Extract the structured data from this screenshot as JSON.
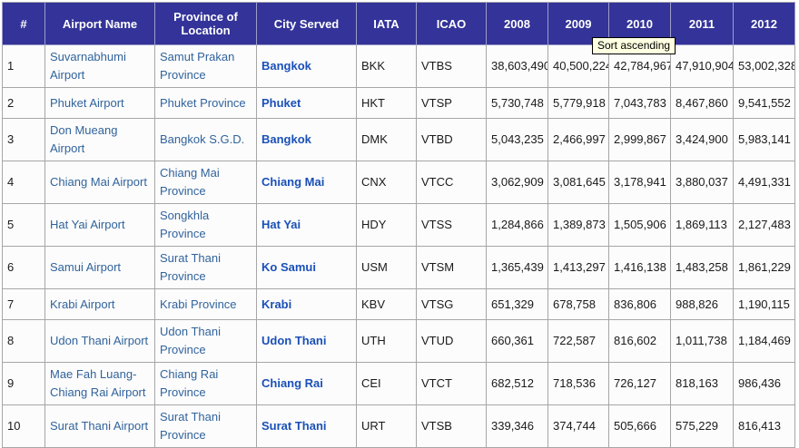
{
  "tooltip": {
    "text": "Sort ascending"
  },
  "colors": {
    "header_bg": "#333399",
    "header_text": "#ffffff",
    "tooltip_bg": "#ffffe1",
    "link_color": "#31639c",
    "city_link_color": "#1a50b8",
    "border_color": "#a6a6a6",
    "cell_bg": "#fcfcfc"
  },
  "table": {
    "columns": [
      "#",
      "Airport Name",
      "Province of Location",
      "City Served",
      "IATA",
      "ICAO",
      "2008",
      "2009",
      "2010",
      "2011",
      "2012"
    ],
    "rows": [
      {
        "rank": "1",
        "airport": "Suvarnabhumi Airport",
        "province": "Samut Prakan Province",
        "city": "Bangkok",
        "iata": "BKK",
        "icao": "VTBS",
        "y2008": "38,603,490",
        "y2009": "40,500,224",
        "y2010": "42,784,967",
        "y2011": "47,910,904",
        "y2012": "53,002,328"
      },
      {
        "rank": "2",
        "airport": "Phuket Airport",
        "province": "Phuket Province",
        "city": "Phuket",
        "iata": "HKT",
        "icao": "VTSP",
        "y2008": "5,730,748",
        "y2009": "5,779,918",
        "y2010": "7,043,783",
        "y2011": "8,467,860",
        "y2012": "9,541,552"
      },
      {
        "rank": "3",
        "airport": "Don Mueang Airport",
        "province": "Bangkok S.G.D.",
        "city": "Bangkok",
        "iata": "DMK",
        "icao": "VTBD",
        "y2008": "5,043,235",
        "y2009": "2,466,997",
        "y2010": "2,999,867",
        "y2011": "3,424,900",
        "y2012": "5,983,141"
      },
      {
        "rank": "4",
        "airport": "Chiang Mai Airport",
        "province": "Chiang Mai Province",
        "city": "Chiang Mai",
        "iata": "CNX",
        "icao": "VTCC",
        "y2008": "3,062,909",
        "y2009": "3,081,645",
        "y2010": "3,178,941",
        "y2011": "3,880,037",
        "y2012": "4,491,331"
      },
      {
        "rank": "5",
        "airport": "Hat Yai Airport",
        "province": "Songkhla Province",
        "city": "Hat Yai",
        "iata": "HDY",
        "icao": "VTSS",
        "y2008": "1,284,866",
        "y2009": "1,389,873",
        "y2010": "1,505,906",
        "y2011": "1,869,113",
        "y2012": "2,127,483"
      },
      {
        "rank": "6",
        "airport": "Samui Airport",
        "province": "Surat Thani Province",
        "city": "Ko Samui",
        "iata": "USM",
        "icao": "VTSM",
        "y2008": "1,365,439",
        "y2009": "1,413,297",
        "y2010": "1,416,138",
        "y2011": "1,483,258",
        "y2012": "1,861,229"
      },
      {
        "rank": "7",
        "airport": "Krabi Airport",
        "province": "Krabi Province",
        "city": "Krabi",
        "iata": "KBV",
        "icao": "VTSG",
        "y2008": "651,329",
        "y2009": "678,758",
        "y2010": "836,806",
        "y2011": "988,826",
        "y2012": "1,190,115"
      },
      {
        "rank": "8",
        "airport": "Udon Thani Airport",
        "province": "Udon Thani Province",
        "city": "Udon Thani",
        "iata": "UTH",
        "icao": "VTUD",
        "y2008": "660,361",
        "y2009": "722,587",
        "y2010": "816,602",
        "y2011": "1,011,738",
        "y2012": "1,184,469"
      },
      {
        "rank": "9",
        "airport": "Mae Fah Luang-Chiang Rai Airport",
        "province": "Chiang Rai Province",
        "city": "Chiang Rai",
        "iata": "CEI",
        "icao": "VTCT",
        "y2008": "682,512",
        "y2009": "718,536",
        "y2010": "726,127",
        "y2011": "818,163",
        "y2012": "986,436"
      },
      {
        "rank": "10",
        "airport": "Surat Thani Airport",
        "province": "Surat Thani Province",
        "city": "Surat Thani",
        "iata": "URT",
        "icao": "VTSB",
        "y2008": "339,346",
        "y2009": "374,744",
        "y2010": "505,666",
        "y2011": "575,229",
        "y2012": "816,413"
      }
    ],
    "row_heights": [
      "h2",
      "h1",
      "h1",
      "h2",
      "h1",
      "h2",
      "h1",
      "h2",
      "h2",
      "h2"
    ]
  }
}
